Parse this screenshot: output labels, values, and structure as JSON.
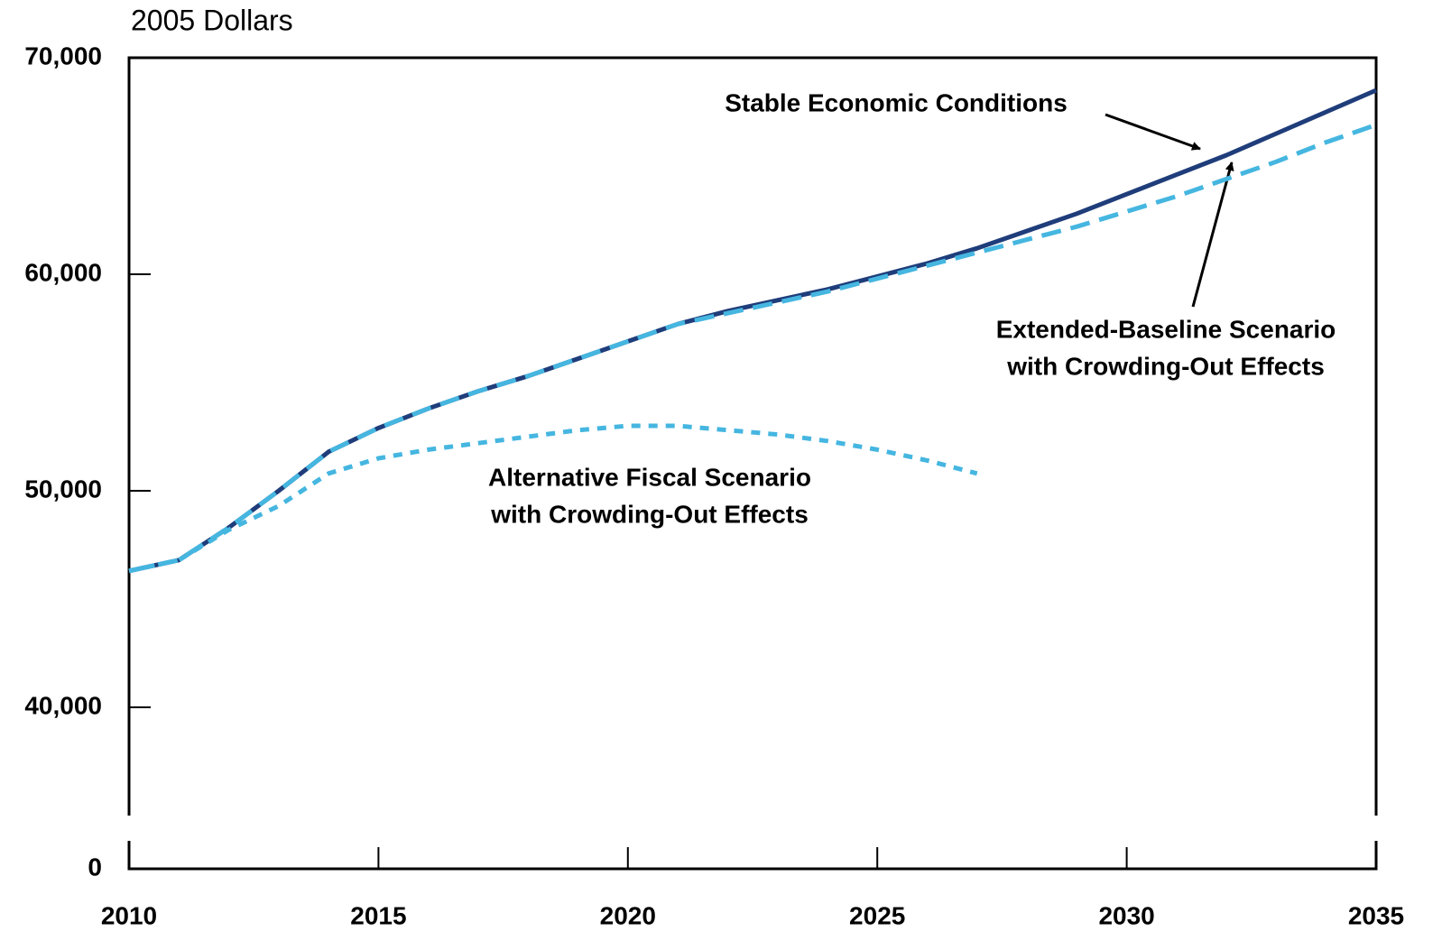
{
  "chart_data": {
    "type": "line",
    "y_axis_label": "2005 Dollars",
    "x": [
      2010,
      2011,
      2012,
      2013,
      2014,
      2015,
      2016,
      2017,
      2018,
      2019,
      2020,
      2021,
      2022,
      2023,
      2024,
      2025,
      2026,
      2027,
      2028,
      2029,
      2030,
      2031,
      2032,
      2033,
      2034,
      2035
    ],
    "series": [
      {
        "label": [
          "Stable Economic Conditions"
        ],
        "color": "#1f3d7a",
        "style": "solid",
        "values": [
          46300,
          46800,
          48300,
          50000,
          51800,
          52900,
          53800,
          54600,
          55300,
          56100,
          56900,
          57700,
          58300,
          58800,
          59300,
          59900,
          60500,
          61200,
          62000,
          62800,
          63700,
          64600,
          65500,
          66500,
          67500,
          68500
        ]
      },
      {
        "label": [
          "Extended-Baseline Scenario",
          "with Crowding-Out Effects"
        ],
        "color": "#45b6e0",
        "style": "dashed",
        "values": [
          46300,
          46800,
          48300,
          50000,
          51800,
          52900,
          53800,
          54600,
          55300,
          56100,
          56900,
          57700,
          58200,
          58700,
          59200,
          59800,
          60400,
          61000,
          61600,
          62200,
          62900,
          63600,
          64400,
          65200,
          66100,
          66900
        ]
      },
      {
        "label": [
          "Alternative Fiscal Scenario",
          "with Crowding-Out Effects"
        ],
        "color": "#45b6e0",
        "style": "dotted",
        "values": [
          46300,
          46800,
          48200,
          49300,
          50800,
          51500,
          51900,
          52200,
          52500,
          52800,
          53000,
          53000,
          52800,
          52600,
          52300,
          51900,
          51400,
          50800,
          null,
          null,
          null,
          null,
          null,
          null,
          null,
          null
        ]
      }
    ],
    "xlim": [
      2010,
      2035
    ],
    "xticks": [
      2010,
      2015,
      2020,
      2025,
      2030,
      2035
    ],
    "ylim": [
      35000,
      70000
    ],
    "yticks": [
      0,
      {
        "value": 40000,
        "label": "40,000"
      },
      {
        "value": 50000,
        "label": "50,000"
      },
      {
        "value": 60000,
        "label": "60,000"
      },
      {
        "value": 70000,
        "label": "70,000"
      }
    ],
    "axis_break": true
  }
}
